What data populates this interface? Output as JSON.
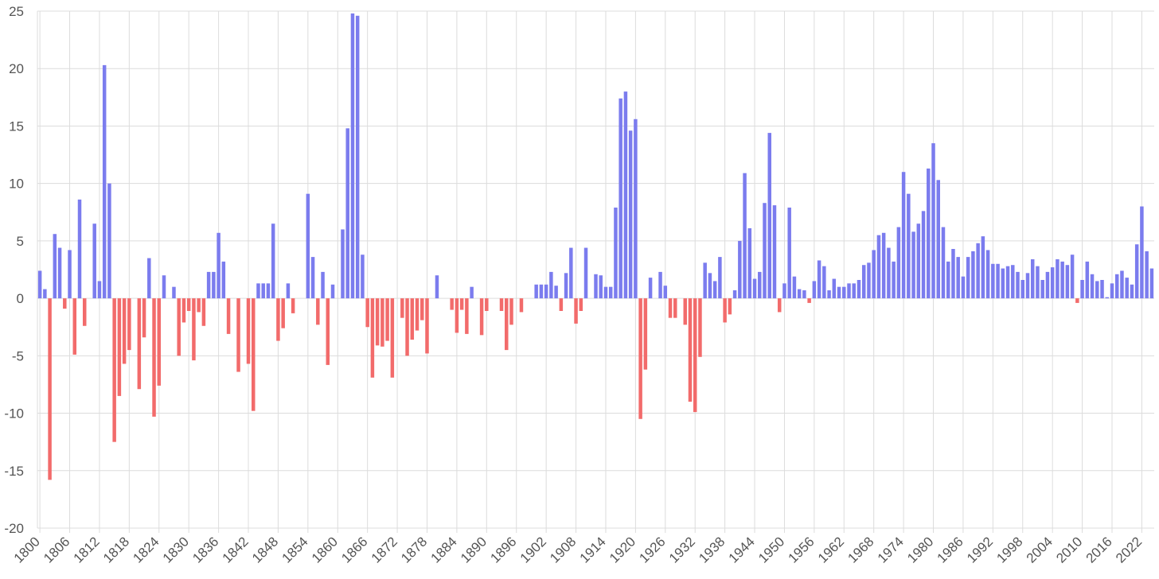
{
  "chart_data": {
    "type": "bar",
    "title": "",
    "xlabel": "",
    "ylabel": "",
    "ylim": [
      -20,
      25
    ],
    "y_ticks": [
      -20,
      -15,
      -10,
      -5,
      0,
      5,
      10,
      15,
      20,
      25
    ],
    "x_tick_labels": [
      "1800",
      "1806",
      "1812",
      "1818",
      "1824",
      "1830",
      "1836",
      "1842",
      "1848",
      "1854",
      "1860",
      "1866",
      "1872",
      "1878",
      "1884",
      "1890",
      "1896",
      "1902",
      "1908",
      "1914",
      "1920",
      "1926",
      "1932",
      "1938",
      "1944",
      "1950",
      "1956",
      "1962",
      "1968",
      "1974",
      "1980",
      "1986",
      "1992",
      "1998",
      "2004",
      "2010",
      "2016",
      "2022"
    ],
    "grid": true,
    "legend": "none",
    "colors": {
      "positive": "#7b7cee",
      "negative": "#f26b6b",
      "grid": "#dcdcdc",
      "tick_text": "#555555"
    },
    "x_start": 1800,
    "x_end": 2023,
    "values": [
      2.4,
      0.8,
      -15.8,
      5.6,
      4.4,
      -0.9,
      4.2,
      -4.9,
      8.6,
      -2.4,
      0,
      6.5,
      1.5,
      20.3,
      10,
      -12.5,
      -8.5,
      -5.7,
      -4.5,
      0,
      -7.9,
      -3.4,
      3.5,
      -10.3,
      -7.6,
      2.0,
      0,
      1.0,
      -5.0,
      -2.1,
      -1.1,
      -5.4,
      -1.2,
      -2.4,
      2.3,
      2.3,
      5.7,
      3.2,
      -3.1,
      0,
      -6.4,
      0,
      -5.7,
      -9.8,
      1.3,
      1.3,
      1.3,
      6.5,
      -3.7,
      -2.6,
      1.3,
      -1.3,
      0,
      0,
      9.1,
      3.6,
      -2.3,
      2.3,
      -5.8,
      1.2,
      0,
      6.0,
      14.8,
      24.8,
      24.6,
      3.8,
      -2.5,
      -6.9,
      -4.1,
      -4.2,
      -3.7,
      -6.9,
      0,
      -1.7,
      -5.0,
      -3.6,
      -2.8,
      -1.9,
      -4.8,
      0,
      2.0,
      0,
      0,
      -1.0,
      -3.0,
      -1.0,
      -3.1,
      1.0,
      0,
      -3.2,
      -1.1,
      0,
      0,
      -1.1,
      -4.5,
      -2.3,
      0,
      -1.2,
      0,
      0,
      1.2,
      1.2,
      1.2,
      2.3,
      1.1,
      -1.1,
      2.2,
      4.4,
      -2.2,
      -1.1,
      4.4,
      0,
      2.1,
      2.0,
      1.0,
      1.0,
      7.9,
      17.4,
      18.0,
      14.6,
      15.6,
      -10.5,
      -6.2,
      1.8,
      0,
      2.3,
      1.1,
      -1.7,
      -1.7,
      0,
      -2.3,
      -9.0,
      -9.9,
      -5.1,
      3.1,
      2.2,
      1.5,
      3.6,
      -2.1,
      -1.4,
      0.7,
      5.0,
      10.9,
      6.1,
      1.7,
      2.3,
      8.3,
      14.4,
      8.1,
      -1.2,
      1.3,
      7.9,
      1.9,
      0.8,
      0.7,
      -0.4,
      1.5,
      3.3,
      2.8,
      0.7,
      1.7,
      1.0,
      1.0,
      1.3,
      1.3,
      1.6,
      2.9,
      3.1,
      4.2,
      5.5,
      5.7,
      4.4,
      3.2,
      6.2,
      11.0,
      9.1,
      5.8,
      6.5,
      7.6,
      11.3,
      13.5,
      10.3,
      6.2,
      3.2,
      4.3,
      3.6,
      1.9,
      3.6,
      4.1,
      4.8,
      5.4,
      4.2,
      3.0,
      3.0,
      2.6,
      2.8,
      2.9,
      2.3,
      1.6,
      2.2,
      3.4,
      2.8,
      1.6,
      2.3,
      2.7,
      3.4,
      3.2,
      2.9,
      3.8,
      -0.4,
      1.6,
      3.2,
      2.1,
      1.5,
      1.6,
      0.1,
      1.3,
      2.1,
      2.4,
      1.8,
      1.2,
      4.7,
      8.0,
      4.1,
      2.6
    ]
  }
}
